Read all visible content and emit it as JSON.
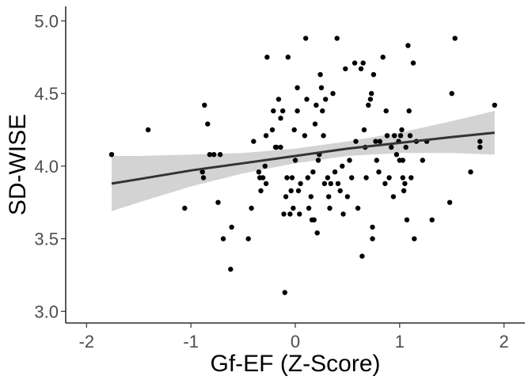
{
  "chart_data": {
    "type": "scatter",
    "xlabel": "Gf-EF (Z-Score)",
    "ylabel": "SD-WISE",
    "xlim": [
      -2.2,
      2.2
    ],
    "ylim": [
      2.92,
      5.1
    ],
    "xticks": [
      -2,
      -1,
      0,
      1,
      2
    ],
    "yticks": [
      3.0,
      3.5,
      4.0,
      4.5,
      5.0
    ],
    "x_tick_labels": [
      "-2",
      "-1",
      "0",
      "1",
      "2"
    ],
    "y_tick_labels": [
      "3.0",
      "3.5",
      "4.0",
      "4.5",
      "5.0"
    ],
    "grid": false,
    "legend": "none",
    "point_color": "#000000",
    "trend": {
      "method": "linear",
      "color": "#333333",
      "band_color": "#d3d3d3",
      "x": [
        -1.76,
        -1.5,
        -1.0,
        -0.5,
        0.0,
        0.5,
        1.0,
        1.5,
        1.91
      ],
      "fit": [
        3.88,
        3.91,
        3.97,
        4.02,
        4.07,
        4.12,
        4.16,
        4.2,
        4.23
      ],
      "lower": [
        3.69,
        3.75,
        3.86,
        3.95,
        4.02,
        4.07,
        4.09,
        4.09,
        4.08
      ],
      "upper": [
        4.07,
        4.07,
        4.08,
        4.09,
        4.12,
        4.17,
        4.23,
        4.31,
        4.38
      ]
    },
    "points": [
      {
        "x": -1.76,
        "y": 4.08
      },
      {
        "x": -1.41,
        "y": 4.25
      },
      {
        "x": -1.06,
        "y": 3.71
      },
      {
        "x": -0.89,
        "y": 3.96
      },
      {
        "x": -0.88,
        "y": 3.92
      },
      {
        "x": -0.87,
        "y": 4.42
      },
      {
        "x": -0.84,
        "y": 4.29
      },
      {
        "x": -0.82,
        "y": 4.08
      },
      {
        "x": -0.78,
        "y": 4.08
      },
      {
        "x": -0.74,
        "y": 3.75
      },
      {
        "x": -0.72,
        "y": 4.08
      },
      {
        "x": -0.69,
        "y": 3.5
      },
      {
        "x": -0.61,
        "y": 3.58
      },
      {
        "x": -0.62,
        "y": 3.29
      },
      {
        "x": -0.45,
        "y": 3.5
      },
      {
        "x": -0.42,
        "y": 3.71
      },
      {
        "x": -0.4,
        "y": 4.17
      },
      {
        "x": -0.35,
        "y": 3.96
      },
      {
        "x": -0.34,
        "y": 3.92
      },
      {
        "x": -0.33,
        "y": 3.83
      },
      {
        "x": -0.31,
        "y": 3.92
      },
      {
        "x": -0.29,
        "y": 4.0
      },
      {
        "x": -0.28,
        "y": 4.21
      },
      {
        "x": -0.28,
        "y": 3.88
      },
      {
        "x": -0.27,
        "y": 4.75
      },
      {
        "x": -0.22,
        "y": 4.25
      },
      {
        "x": -0.21,
        "y": 4.38
      },
      {
        "x": -0.19,
        "y": 4.13
      },
      {
        "x": -0.18,
        "y": 4.13
      },
      {
        "x": -0.16,
        "y": 4.46
      },
      {
        "x": -0.14,
        "y": 4.13
      },
      {
        "x": -0.14,
        "y": 4.33
      },
      {
        "x": -0.12,
        "y": 4.38
      },
      {
        "x": -0.11,
        "y": 3.67
      },
      {
        "x": -0.09,
        "y": 3.79
      },
      {
        "x": -0.1,
        "y": 3.13
      },
      {
        "x": -0.08,
        "y": 3.92
      },
      {
        "x": -0.07,
        "y": 4.75
      },
      {
        "x": -0.05,
        "y": 3.67
      },
      {
        "x": -0.04,
        "y": 3.83
      },
      {
        "x": -0.03,
        "y": 3.92
      },
      {
        "x": -0.02,
        "y": 3.71
      },
      {
        "x": -0.01,
        "y": 4.25
      },
      {
        "x": 0.0,
        "y": 4.04
      },
      {
        "x": 0.02,
        "y": 4.38
      },
      {
        "x": 0.02,
        "y": 4.54
      },
      {
        "x": 0.03,
        "y": 3.83
      },
      {
        "x": 0.04,
        "y": 3.67
      },
      {
        "x": 0.05,
        "y": 3.88
      },
      {
        "x": 0.09,
        "y": 4.21
      },
      {
        "x": 0.1,
        "y": 4.88
      },
      {
        "x": 0.11,
        "y": 4.46
      },
      {
        "x": 0.12,
        "y": 3.92
      },
      {
        "x": 0.13,
        "y": 3.71
      },
      {
        "x": 0.15,
        "y": 3.79
      },
      {
        "x": 0.16,
        "y": 3.63
      },
      {
        "x": 0.17,
        "y": 3.96
      },
      {
        "x": 0.18,
        "y": 3.63
      },
      {
        "x": 0.19,
        "y": 4.29
      },
      {
        "x": 0.2,
        "y": 4.42
      },
      {
        "x": 0.21,
        "y": 3.54
      },
      {
        "x": 0.22,
        "y": 4.04
      },
      {
        "x": 0.23,
        "y": 4.08
      },
      {
        "x": 0.24,
        "y": 4.63
      },
      {
        "x": 0.25,
        "y": 4.54
      },
      {
        "x": 0.26,
        "y": 4.38
      },
      {
        "x": 0.27,
        "y": 4.21
      },
      {
        "x": 0.28,
        "y": 3.88
      },
      {
        "x": 0.29,
        "y": 4.46
      },
      {
        "x": 0.31,
        "y": 3.92
      },
      {
        "x": 0.32,
        "y": 3.79
      },
      {
        "x": 0.33,
        "y": 3.71
      },
      {
        "x": 0.34,
        "y": 3.88
      },
      {
        "x": 0.36,
        "y": 4.5
      },
      {
        "x": 0.38,
        "y": 3.96
      },
      {
        "x": 0.4,
        "y": 4.88
      },
      {
        "x": 0.41,
        "y": 3.88
      },
      {
        "x": 0.43,
        "y": 3.83
      },
      {
        "x": 0.45,
        "y": 4.0
      },
      {
        "x": 0.46,
        "y": 3.67
      },
      {
        "x": 0.48,
        "y": 4.67
      },
      {
        "x": 0.5,
        "y": 3.79
      },
      {
        "x": 0.52,
        "y": 4.04
      },
      {
        "x": 0.54,
        "y": 3.92
      },
      {
        "x": 0.57,
        "y": 4.71
      },
      {
        "x": 0.58,
        "y": 4.17
      },
      {
        "x": 0.6,
        "y": 3.71
      },
      {
        "x": 0.63,
        "y": 4.67
      },
      {
        "x": 0.64,
        "y": 3.38
      },
      {
        "x": 0.65,
        "y": 4.71
      },
      {
        "x": 0.66,
        "y": 4.25
      },
      {
        "x": 0.67,
        "y": 4.13
      },
      {
        "x": 0.68,
        "y": 3.92
      },
      {
        "x": 0.7,
        "y": 4.42
      },
      {
        "x": 0.72,
        "y": 4.46
      },
      {
        "x": 0.73,
        "y": 4.5
      },
      {
        "x": 0.74,
        "y": 3.58
      },
      {
        "x": 0.74,
        "y": 3.5
      },
      {
        "x": 0.75,
        "y": 4.63
      },
      {
        "x": 0.77,
        "y": 4.17
      },
      {
        "x": 0.78,
        "y": 4.04
      },
      {
        "x": 0.8,
        "y": 3.96
      },
      {
        "x": 0.81,
        "y": 4.17
      },
      {
        "x": 0.84,
        "y": 4.75
      },
      {
        "x": 0.86,
        "y": 3.88
      },
      {
        "x": 0.87,
        "y": 4.38
      },
      {
        "x": 0.88,
        "y": 4.21
      },
      {
        "x": 0.9,
        "y": 3.92
      },
      {
        "x": 0.92,
        "y": 4.13
      },
      {
        "x": 0.94,
        "y": 3.79
      },
      {
        "x": 0.95,
        "y": 4.21
      },
      {
        "x": 0.97,
        "y": 4.08
      },
      {
        "x": 0.99,
        "y": 4.17
      },
      {
        "x": 1.0,
        "y": 4.04
      },
      {
        "x": 1.01,
        "y": 4.21
      },
      {
        "x": 1.02,
        "y": 4.25
      },
      {
        "x": 1.03,
        "y": 3.92
      },
      {
        "x": 1.03,
        "y": 4.04
      },
      {
        "x": 1.04,
        "y": 3.83
      },
      {
        "x": 1.05,
        "y": 3.88
      },
      {
        "x": 1.06,
        "y": 4.13
      },
      {
        "x": 1.07,
        "y": 3.63
      },
      {
        "x": 1.08,
        "y": 4.83
      },
      {
        "x": 1.09,
        "y": 4.38
      },
      {
        "x": 1.1,
        "y": 4.21
      },
      {
        "x": 1.11,
        "y": 3.92
      },
      {
        "x": 1.13,
        "y": 4.71
      },
      {
        "x": 1.14,
        "y": 3.5
      },
      {
        "x": 1.16,
        "y": 4.17
      },
      {
        "x": 1.22,
        "y": 4.04
      },
      {
        "x": 1.26,
        "y": 4.17
      },
      {
        "x": 1.31,
        "y": 3.63
      },
      {
        "x": 1.48,
        "y": 3.75
      },
      {
        "x": 1.5,
        "y": 4.5
      },
      {
        "x": 1.53,
        "y": 4.88
      },
      {
        "x": 1.68,
        "y": 3.96
      },
      {
        "x": 1.77,
        "y": 4.17
      },
      {
        "x": 1.77,
        "y": 4.13
      },
      {
        "x": 1.91,
        "y": 4.42
      }
    ]
  }
}
